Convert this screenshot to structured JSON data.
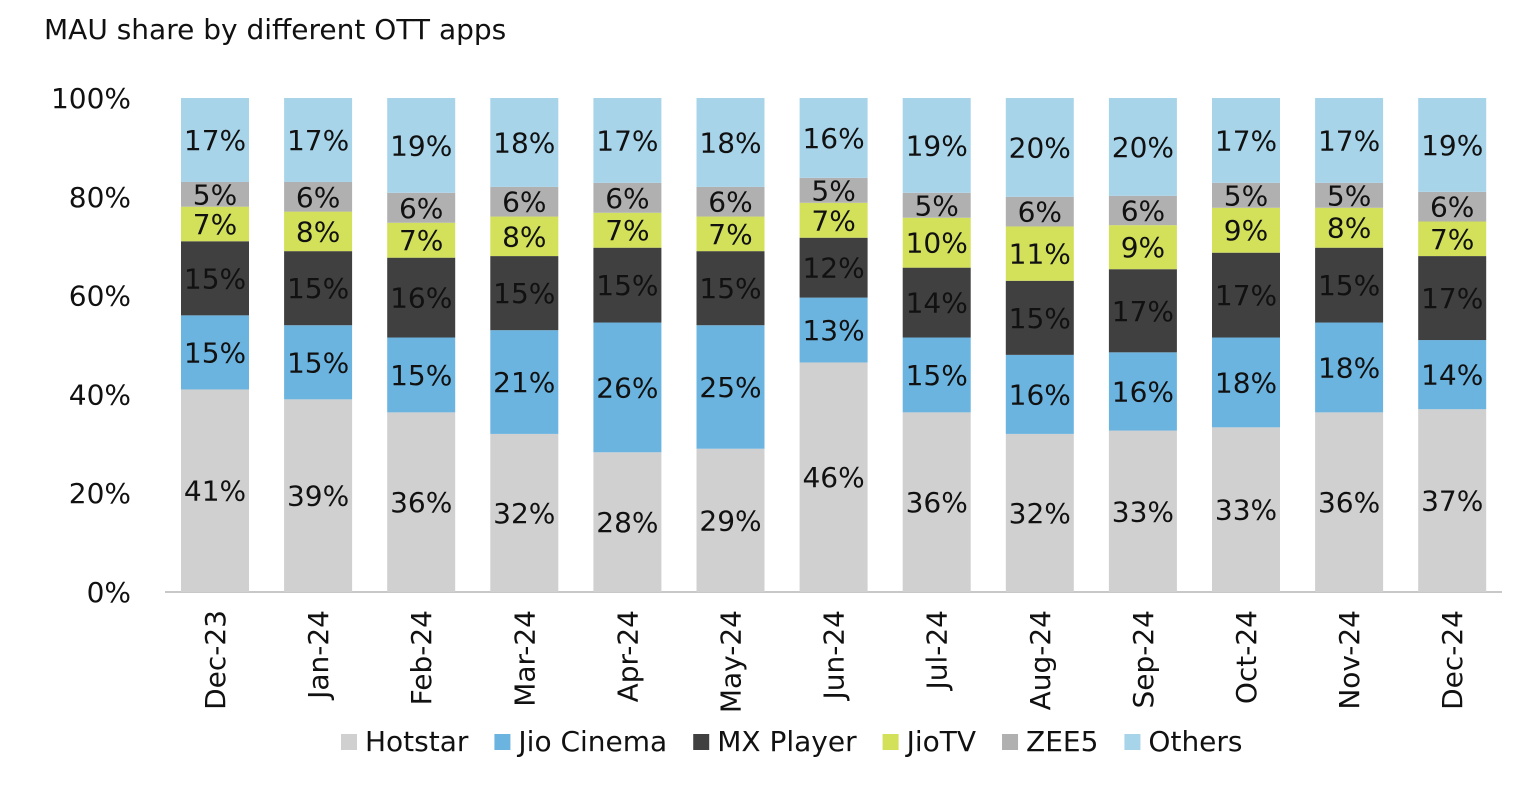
{
  "chart_data": {
    "type": "bar",
    "stacked": true,
    "title": "MAU share by different OTT apps",
    "xlabel": "",
    "ylabel": "",
    "ylim": [
      0,
      100
    ],
    "yticks": [
      "0%",
      "20%",
      "40%",
      "60%",
      "80%",
      "100%"
    ],
    "legend_position": "bottom",
    "categories": [
      "Dec-23",
      "Jan-24",
      "Feb-24",
      "Mar-24",
      "Apr-24",
      "May-24",
      "Jun-24",
      "Jul-24",
      "Aug-24",
      "Sep-24",
      "Oct-24",
      "Nov-24",
      "Dec-24"
    ],
    "series": [
      {
        "name": "Hotstar",
        "color": "#d0d0d0",
        "values": [
          41,
          39,
          36,
          32,
          28,
          29,
          46,
          36,
          32,
          33,
          33,
          36,
          37
        ]
      },
      {
        "name": "Jio Cinema",
        "color": "#6cb4e0",
        "values": [
          15,
          15,
          15,
          21,
          26,
          25,
          13,
          15,
          16,
          16,
          18,
          18,
          14
        ]
      },
      {
        "name": "MX Player",
        "color": "#404040",
        "values": [
          15,
          15,
          16,
          15,
          15,
          15,
          12,
          14,
          15,
          17,
          17,
          15,
          17
        ]
      },
      {
        "name": "JioTV",
        "color": "#d2e05a",
        "values": [
          7,
          8,
          7,
          8,
          7,
          7,
          7,
          10,
          11,
          9,
          9,
          8,
          7
        ]
      },
      {
        "name": "ZEE5",
        "color": "#b0b0b0",
        "values": [
          5,
          6,
          6,
          6,
          6,
          6,
          5,
          5,
          6,
          6,
          5,
          5,
          6
        ]
      },
      {
        "name": "Others",
        "color": "#a8d4ea",
        "values": [
          17,
          17,
          19,
          18,
          17,
          18,
          16,
          19,
          20,
          20,
          17,
          17,
          19
        ]
      }
    ]
  }
}
